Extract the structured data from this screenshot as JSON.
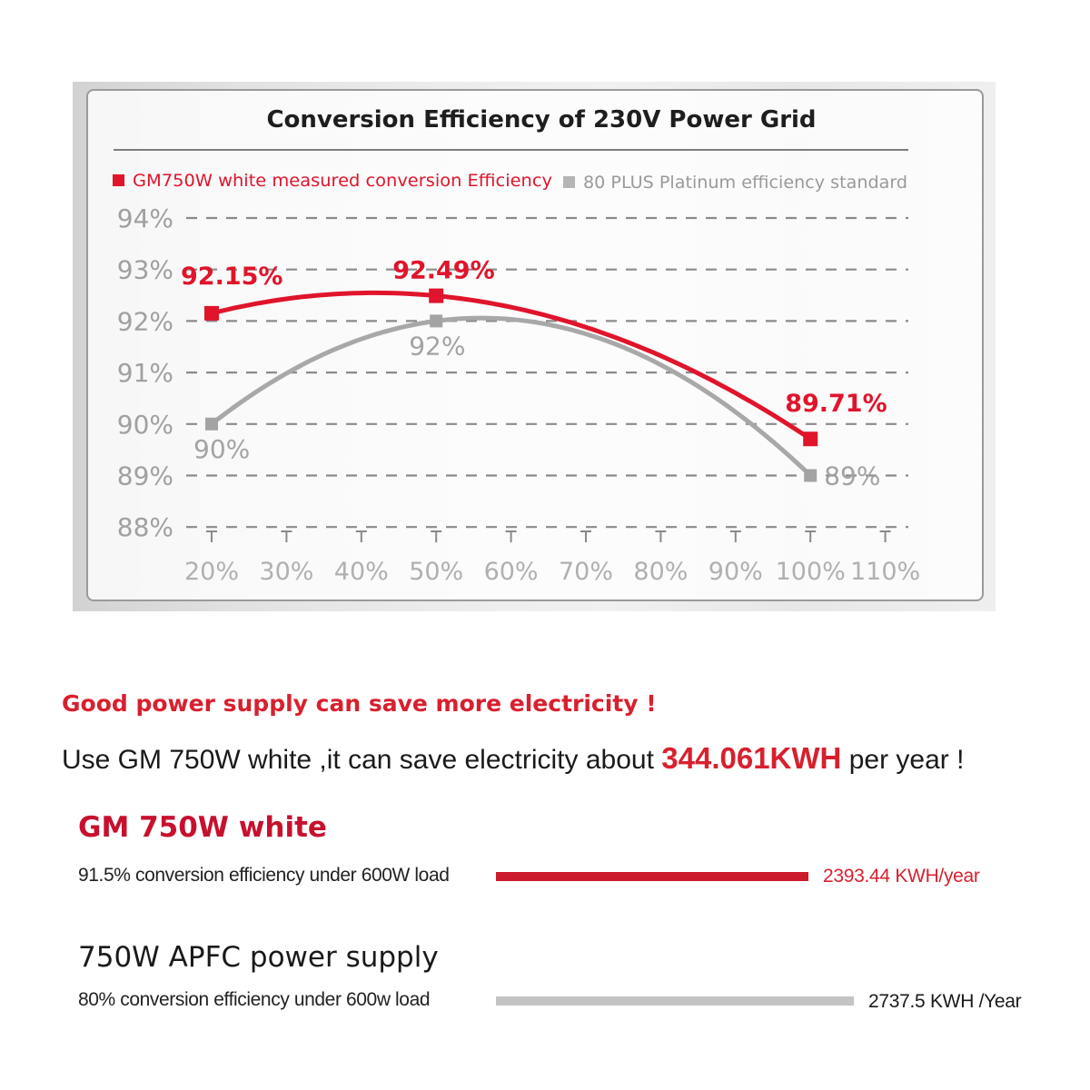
{
  "chart_data": {
    "type": "line",
    "title": "Conversion Efficiency of 230V Power Grid",
    "legend_placement": "top-left",
    "x_categories": [
      "20%",
      "30%",
      "40%",
      "50%",
      "60%",
      "70%",
      "80%",
      "90%",
      "100%",
      "110%"
    ],
    "y_ticks": [
      "94%",
      "93%",
      "92%",
      "91%",
      "90%",
      "89%",
      "88%"
    ],
    "ylim": [
      88,
      94
    ],
    "grid": "dashed horizontal",
    "series": [
      {
        "name": "GM750W white measured conversion Efficiency",
        "color": "#e0142b",
        "points": [
          {
            "x": 20,
            "y": 92.15,
            "label": "92.15%"
          },
          {
            "x": 50,
            "y": 92.49,
            "label": "92.49%"
          },
          {
            "x": 100,
            "y": 89.71,
            "label": "89.71%"
          }
        ]
      },
      {
        "name": "80 PLUS Platinum efficiency standard",
        "color": "#a8a8a8",
        "points": [
          {
            "x": 20,
            "y": 90,
            "label": "90%"
          },
          {
            "x": 50,
            "y": 92,
            "label": "92%"
          },
          {
            "x": 100,
            "y": 89,
            "label": "89%"
          }
        ]
      }
    ]
  },
  "promo": {
    "headline": "Good power supply can save more electricity !",
    "sub_prefix": "Use GM 750W white ,it can save electricity  about ",
    "sub_value": "344.061KWH",
    "sub_suffix": " per year !"
  },
  "comparison": [
    {
      "title": "GM 750W white",
      "title_color": "#c8102e",
      "label": "91.5% conversion efficiency under 600W load",
      "value": "2393.44 KWH/year",
      "value_color": "#d8202e",
      "bar_color": "#cc1b2b",
      "kwh_per_year": 2393.44
    },
    {
      "title": "750W APFC power supply",
      "title_color": "#1a1a1a",
      "label": "80% conversion efficiency under 600w load",
      "value": "2737.5 KWH /Year",
      "value_color": "#1a1a1a",
      "bar_color": "#c4c4c4",
      "kwh_per_year": 2737.5
    }
  ]
}
